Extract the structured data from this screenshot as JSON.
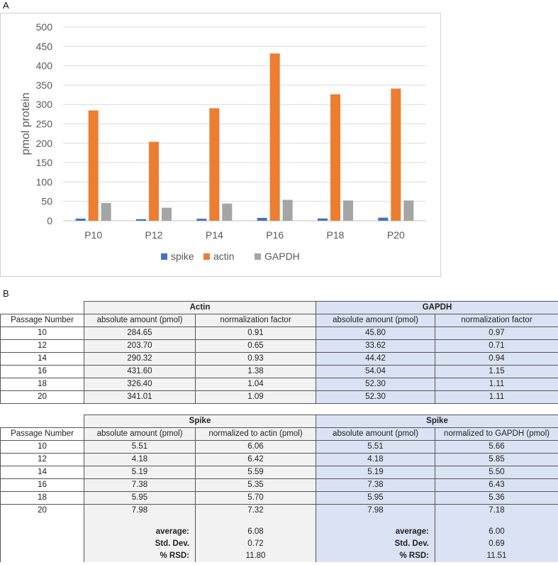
{
  "panel_a_label": "A",
  "panel_b_label": "B",
  "chart_data": {
    "type": "bar",
    "categories": [
      "P10",
      "P12",
      "P14",
      "P16",
      "P18",
      "P20"
    ],
    "series": [
      {
        "name": "spike",
        "color": "#4472c4",
        "values": [
          5.51,
          4.18,
          5.19,
          7.38,
          5.95,
          7.98
        ]
      },
      {
        "name": "actin",
        "color": "#ed7d31",
        "values": [
          284.65,
          203.7,
          290.32,
          431.6,
          326.4,
          341.01
        ]
      },
      {
        "name": "GAPDH",
        "color": "#a5a5a5",
        "values": [
          45.8,
          33.62,
          44.42,
          54.04,
          52.3,
          52.3
        ]
      }
    ],
    "title": "",
    "xlabel": "",
    "ylabel": "pmol protein",
    "ylim": [
      0,
      500
    ],
    "yticks": [
      0,
      50,
      100,
      150,
      200,
      250,
      300,
      350,
      400,
      450,
      500
    ],
    "grid": true,
    "legend_position": "bottom"
  },
  "table1": {
    "group_headers": [
      "Actin",
      "GAPDH"
    ],
    "col_headers": [
      "Passage Number",
      "absolute amount (pmol)",
      "normalization factor",
      "absolute amount (pmol)",
      "normalization factor"
    ],
    "rows": [
      [
        "10",
        "284.65",
        "0.91",
        "45.80",
        "0.97"
      ],
      [
        "12",
        "203.70",
        "0.65",
        "33.62",
        "0.71"
      ],
      [
        "14",
        "290.32",
        "0.93",
        "44.42",
        "0.94"
      ],
      [
        "16",
        "431.60",
        "1.38",
        "54.04",
        "1.15"
      ],
      [
        "18",
        "326.40",
        "1.04",
        "52.30",
        "1.11"
      ],
      [
        "20",
        "341.01",
        "1.09",
        "52.30",
        "1.11"
      ]
    ]
  },
  "table2": {
    "group_headers": [
      "Spike",
      "Spike"
    ],
    "col_headers": [
      "Passage Number",
      "absolute amount (pmol)",
      "normalized to actin (pmol)",
      "absolute amount (pmol)",
      "normalized to GAPDH (pmol)"
    ],
    "rows": [
      [
        "10",
        "5.51",
        "6.06",
        "5.51",
        "5.66"
      ],
      [
        "12",
        "4.18",
        "6.42",
        "4.18",
        "5.85"
      ],
      [
        "14",
        "5.19",
        "5.59",
        "5.19",
        "5.50"
      ],
      [
        "16",
        "7.38",
        "5.35",
        "7.38",
        "6.43"
      ],
      [
        "18",
        "5.95",
        "5.70",
        "5.95",
        "5.36"
      ],
      [
        "20",
        "7.98",
        "7.32",
        "7.98",
        "7.18"
      ]
    ]
  },
  "stats": {
    "labels": [
      "average:",
      "Std. Dev.",
      "% RSD:"
    ],
    "actin_values": [
      "6.08",
      "0.72",
      "11.80"
    ],
    "gapdh_values": [
      "6.00",
      "0.69",
      "11.51"
    ]
  }
}
